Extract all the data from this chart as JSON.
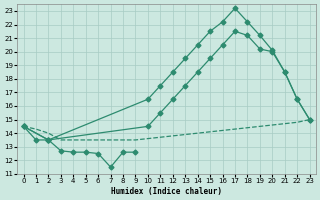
{
  "xlabel": "Humidex (Indice chaleur)",
  "color": "#2d8b6f",
  "bg_color": "#cce8e0",
  "grid_color": "#a8ccc4",
  "ylim": [
    11,
    23.5
  ],
  "xlim": [
    -0.5,
    23.5
  ],
  "yticks": [
    11,
    12,
    13,
    14,
    15,
    16,
    17,
    18,
    19,
    20,
    21,
    22,
    23
  ],
  "xticks": [
    0,
    1,
    2,
    3,
    4,
    5,
    6,
    7,
    8,
    9,
    10,
    11,
    12,
    13,
    14,
    15,
    16,
    17,
    18,
    19,
    20,
    21,
    22,
    23
  ],
  "curve_noisy": {
    "x": [
      0,
      1,
      2,
      3,
      4,
      5,
      6,
      7,
      8,
      9
    ],
    "y": [
      14.5,
      13.5,
      13.5,
      12.7,
      12.6,
      12.6,
      12.5,
      11.5,
      12.6,
      12.6
    ]
  },
  "curve_flat": {
    "x": [
      0,
      1,
      2,
      3,
      4,
      5,
      6,
      7,
      8,
      9,
      10,
      11,
      12,
      13,
      14,
      15,
      16,
      17,
      18,
      19,
      20,
      21,
      22,
      23
    ],
    "y": [
      14.5,
      14.3,
      14.0,
      13.5,
      13.5,
      13.5,
      13.5,
      13.5,
      13.5,
      13.5,
      13.6,
      13.7,
      13.8,
      13.9,
      14.0,
      14.1,
      14.2,
      14.3,
      14.4,
      14.5,
      14.6,
      14.7,
      14.8,
      15.0
    ]
  },
  "curve_upper": {
    "x": [
      0,
      2,
      10,
      11,
      12,
      13,
      14,
      15,
      16,
      17,
      18,
      19,
      20,
      21,
      22,
      23
    ],
    "y": [
      14.5,
      13.5,
      16.5,
      17.5,
      18.5,
      19.5,
      20.5,
      21.5,
      22.2,
      23.2,
      22.2,
      21.2,
      20.1,
      18.5,
      16.5,
      15.0
    ]
  },
  "curve_mid": {
    "x": [
      0,
      2,
      10,
      11,
      12,
      13,
      14,
      15,
      16,
      17,
      18,
      19,
      20,
      21,
      22,
      23
    ],
    "y": [
      14.5,
      13.5,
      14.5,
      15.5,
      16.5,
      17.5,
      18.5,
      19.5,
      20.5,
      21.5,
      21.2,
      20.2,
      20.0,
      18.5,
      16.5,
      15.0
    ]
  }
}
